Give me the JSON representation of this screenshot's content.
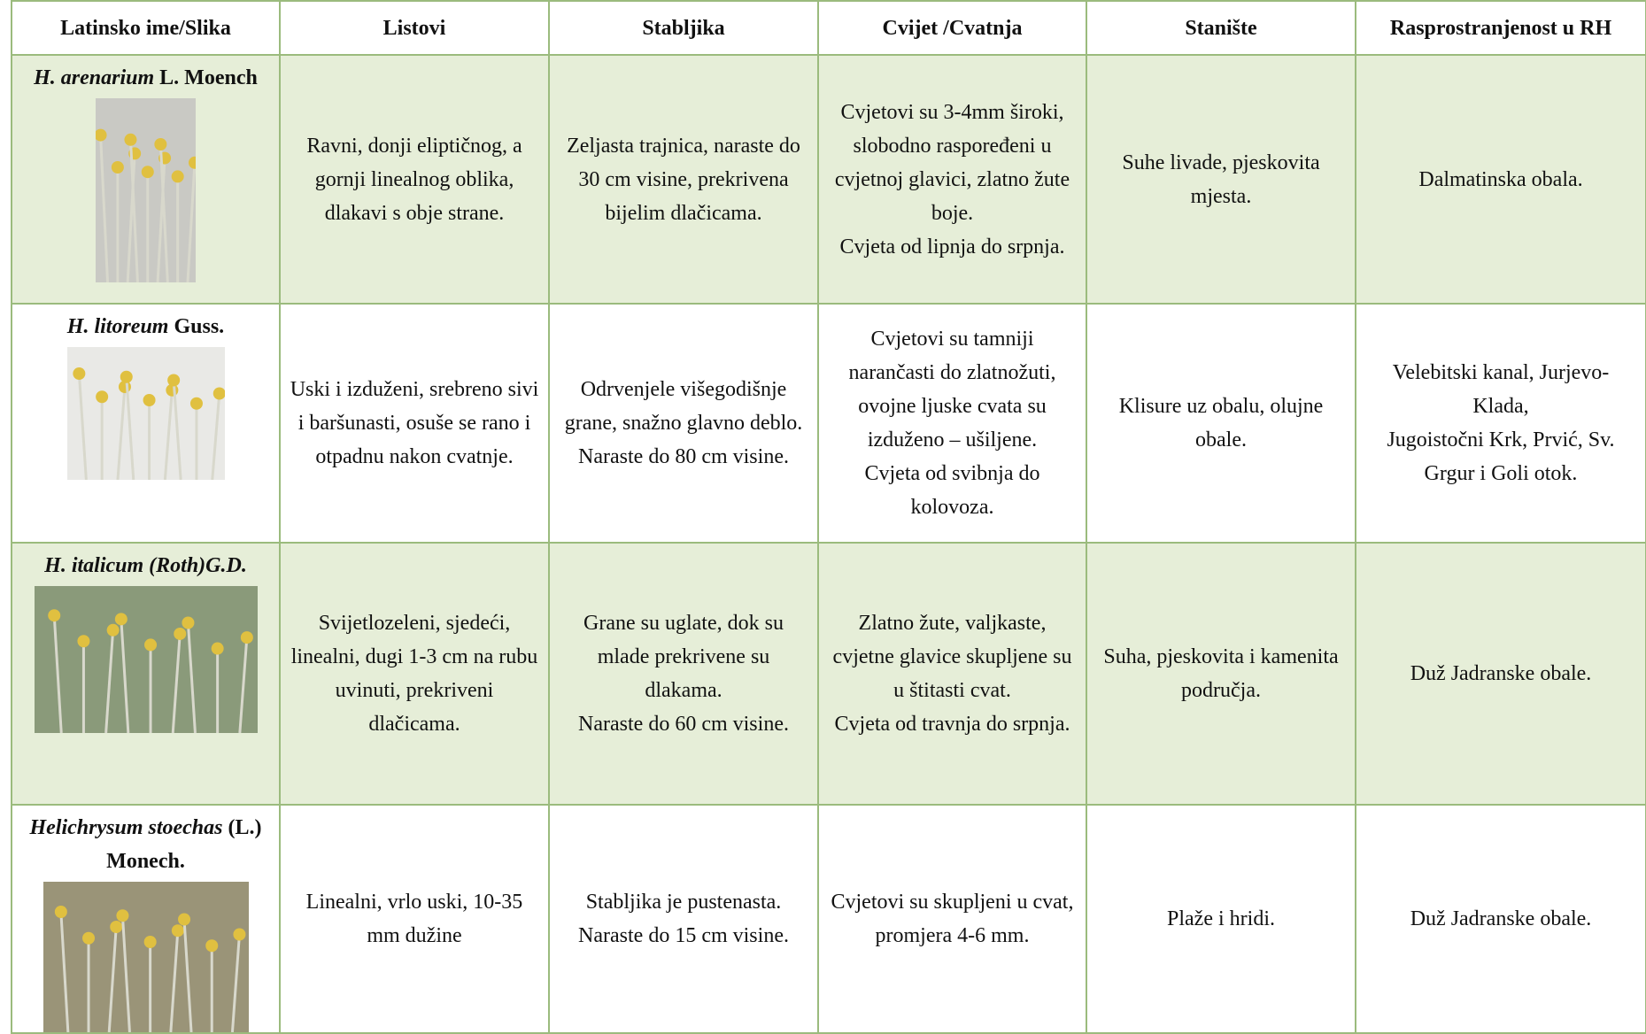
{
  "table": {
    "headers": [
      "Latinsko ime/Slika",
      "Listovi",
      "Stabljika",
      "Cvijet /Cvatnja",
      "Stanište",
      "Rasprostranjenost u RH"
    ],
    "rows": [
      {
        "name_italic": "H. arenarium",
        "name_rest": "L. Moench",
        "cells": [
          [
            "Ravni, donji eliptičnog, a gornji linealnog oblika, dlakavi s obje strane."
          ],
          [
            "Zeljasta trajnica, naraste do 30 cm visine, prekrivena bijelim dlačicama."
          ],
          [
            "Cvjetovi su 3-4mm široki, slobodno raspoređeni u cvjetnoj glavici, zlatno žute boje.",
            "Cvjeta od lipnja do srpnja."
          ],
          [
            "Suhe livade, pjeskovita mjesta."
          ],
          [
            "Dalmatinska obala."
          ]
        ]
      },
      {
        "name_italic": "H. litoreum",
        "name_rest": "Guss.",
        "cells": [
          [
            "Uski i izduženi, srebreno sivi i baršunasti, osuše se rano i otpadnu nakon cvatnje."
          ],
          [
            "Odrvenjele višegodišnje grane, snažno glavno deblo.",
            "Naraste do 80 cm visine."
          ],
          [
            "Cvjetovi su tamniji narančasti do zlatnožuti, ovojne ljuske cvata su izduženo – ušiljene.",
            "Cvjeta od svibnja do kolovoza."
          ],
          [
            "Klisure uz obalu, olujne obale."
          ],
          [
            "Velebitski kanal, Jurjevo-Klada,",
            "Jugoistočni Krk, Prvić, Sv. Grgur i Goli otok."
          ]
        ]
      },
      {
        "name_italic": "H. italicum (Roth)G.D.",
        "cells": [
          [
            "Svijetlozeleni, sjedeći, linealni, dugi 1-3 cm na rubu uvinuti, prekriveni dlačicama."
          ],
          [
            "Grane su uglate, dok su mlade prekrivene su dlakama.",
            "Naraste do 60 cm visine."
          ],
          [
            "Zlatno žute, valjkaste, cvjetne glavice skupljene su u štitasti cvat.",
            "Cvjeta od travnja do srpnja."
          ],
          [
            "Suha, pjeskovita i kamenita područja."
          ],
          [
            "Duž Jadranske obale."
          ]
        ]
      },
      {
        "name_italic": "Helichrysum stoechas",
        "name_rest": "(L.) Monech.",
        "cells": [
          [
            "Linealni, vrlo uski, 10-35 mm dužine"
          ],
          [
            "Stabljika je pustenasta.",
            "Naraste do 15 cm visine."
          ],
          [
            "Cvjetovi su skupljeni u cvat, promjera 4-6 mm."
          ],
          [
            "Plaže i hridi."
          ],
          [
            "Duž Jadranske obale."
          ]
        ]
      }
    ]
  }
}
